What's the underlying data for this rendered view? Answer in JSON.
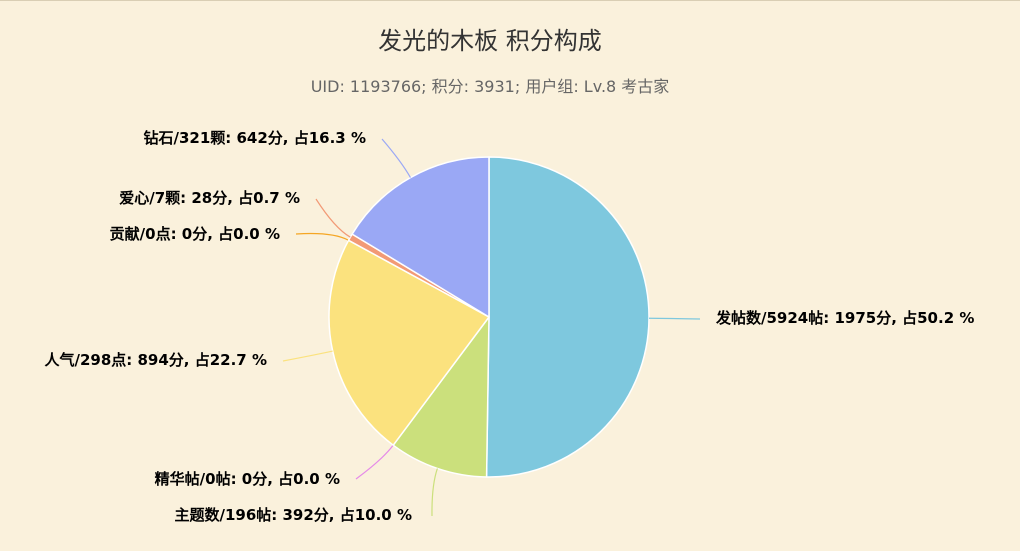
{
  "header": {
    "title": "发光的木板 积分构成",
    "subtitle": "UID: 1193766; 积分: 3931; 用户组: Lv.8 考古家"
  },
  "chart_data": {
    "type": "pie",
    "title": "发光的木板 积分构成",
    "subtitle": "UID: 1193766; 积分: 3931; 用户组: Lv.8 考古家",
    "slices": [
      {
        "name": "发帖数/5924帖",
        "value": 1975,
        "percent": 50.2,
        "label": "发帖数/5924帖: 1975分, 占50.2 %",
        "color": "#7ec8de"
      },
      {
        "name": "主题数/196帖",
        "value": 392,
        "percent": 10.0,
        "label": "主题数/196帖: 392分, 占10.0 %",
        "color": "#cbe07c"
      },
      {
        "name": "精华帖/0帖",
        "value": 0,
        "percent": 0.0,
        "label": "精华帖/0帖: 0分, 占0.0 %",
        "color": "#e58ae8"
      },
      {
        "name": "人气/298点",
        "value": 894,
        "percent": 22.7,
        "label": "人气/298点: 894分, 占22.7 %",
        "color": "#fbe27e"
      },
      {
        "name": "贡献/0点",
        "value": 0,
        "percent": 0.0,
        "label": "贡献/0点: 0分, 占0.0 %",
        "color": "#f5a623"
      },
      {
        "name": "爱心/7颗",
        "value": 28,
        "percent": 0.7,
        "label": "爱心/7颗: 28分, 占0.7 %",
        "color": "#f29a76"
      },
      {
        "name": "钻石/321颗",
        "value": 642,
        "percent": 16.3,
        "label": "钻石/321颗: 642分, 占16.3 %",
        "color": "#9aa8f5"
      }
    ]
  }
}
